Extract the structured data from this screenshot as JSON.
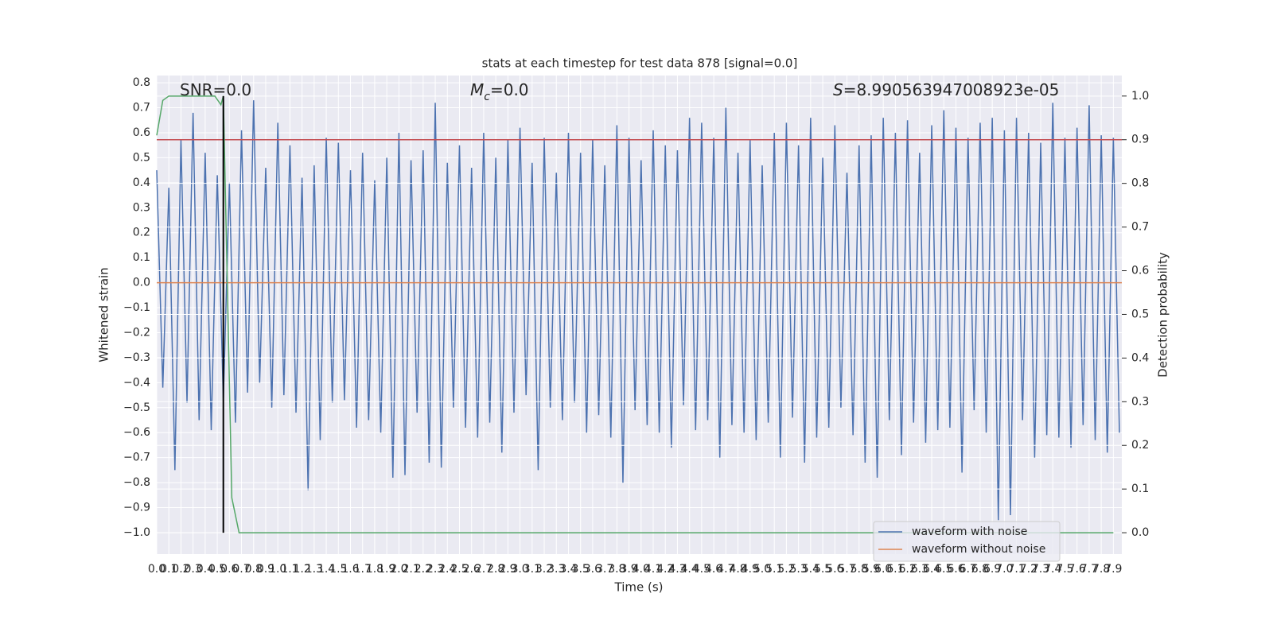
{
  "chart_data": {
    "type": "line",
    "title": "stats at each timestep for test data 878 [signal=0.0]",
    "x_label": "Time (s)",
    "y_label": "Whitened strain",
    "y2_label": "Detection probability",
    "grid": true,
    "legend": "lower right",
    "background": "#eaeaf2",
    "xlim": [
      0,
      7.97
    ],
    "ylim": [
      -1.086,
      0.829
    ],
    "y2lim": [
      -0.049,
      1.047
    ],
    "xticks": [
      {
        "value": 0,
        "label": "0.0"
      },
      0.1,
      0.2,
      0.3,
      0.4,
      0.5,
      0.6,
      0.7,
      0.8,
      0.9,
      {
        "value": 1,
        "label": "1.0"
      },
      1.1,
      1.2,
      1.3,
      1.4,
      1.5,
      1.6,
      1.7,
      1.8,
      1.9,
      {
        "value": 2,
        "label": "2.0"
      },
      2.1,
      2.2,
      2.3,
      2.4,
      2.5,
      2.6,
      2.7,
      2.8,
      2.9,
      {
        "value": 3,
        "label": "3.0"
      },
      3.1,
      3.2,
      3.3,
      3.4,
      3.5,
      3.6,
      3.7,
      3.8,
      3.9,
      {
        "value": 4,
        "label": "4.0"
      },
      4.1,
      4.2,
      4.3,
      4.4,
      4.5,
      4.6,
      4.7,
      4.8,
      4.9,
      {
        "value": 5,
        "label": "5.0"
      },
      5.1,
      5.2,
      5.3,
      5.4,
      5.5,
      5.6,
      5.7,
      5.8,
      5.9,
      {
        "value": 6,
        "label": "6.0"
      },
      6.1,
      6.2,
      6.3,
      6.4,
      6.5,
      6.6,
      6.7,
      6.8,
      6.9,
      {
        "value": 7,
        "label": "7.0"
      },
      7.1,
      7.2,
      7.3,
      7.4,
      7.5,
      7.6,
      7.7,
      7.8,
      7.9
    ],
    "yticks": [
      0.8,
      0.7,
      0.6,
      0.5,
      0.4,
      0.3,
      0.2,
      0.1,
      {
        "value": 0,
        "label": "0.0"
      },
      {
        "value": -0.1,
        "label": "−0.1"
      },
      {
        "value": -0.2,
        "label": "−0.2"
      },
      {
        "value": -0.3,
        "label": "−0.3"
      },
      {
        "value": -0.4,
        "label": "−0.4"
      },
      {
        "value": -0.5,
        "label": "−0.5"
      },
      {
        "value": -0.6,
        "label": "−0.6"
      },
      {
        "value": -0.7,
        "label": "−0.7"
      },
      {
        "value": -0.8,
        "label": "−0.8"
      },
      {
        "value": -0.9,
        "label": "−0.9"
      },
      {
        "value": -1,
        "label": "−1.0"
      }
    ],
    "y2ticks": [
      {
        "value": 1,
        "label": "1.0"
      },
      0.9,
      0.8,
      0.7,
      0.6,
      0.5,
      0.4,
      0.3,
      0.2,
      0.1,
      {
        "value": 0,
        "label": "0.0"
      }
    ],
    "series": [
      {
        "name": "waveform with noise",
        "color": "#4c72b0",
        "x": [
          0,
          0.05,
          0.1,
          0.15,
          0.2,
          0.25,
          0.3,
          0.35,
          0.4,
          0.45,
          0.5,
          0.55,
          0.6,
          0.65,
          0.7,
          0.75,
          0.8,
          0.85,
          0.9,
          0.95,
          1,
          1.05,
          1.1,
          1.15,
          1.2,
          1.25,
          1.3,
          1.35,
          1.4,
          1.45,
          1.5,
          1.55,
          1.6,
          1.65,
          1.7,
          1.75,
          1.8,
          1.85,
          1.9,
          1.95,
          2,
          2.05,
          2.1,
          2.15,
          2.2,
          2.25,
          2.3,
          2.35,
          2.4,
          2.45,
          2.5,
          2.55,
          2.6,
          2.65,
          2.7,
          2.75,
          2.8,
          2.85,
          2.9,
          2.95,
          3,
          3.05,
          3.1,
          3.15,
          3.2,
          3.25,
          3.3,
          3.35,
          3.4,
          3.45,
          3.5,
          3.55,
          3.6,
          3.65,
          3.7,
          3.75,
          3.8,
          3.85,
          3.9,
          3.95,
          4,
          4.05,
          4.1,
          4.15,
          4.2,
          4.25,
          4.3,
          4.35,
          4.4,
          4.45,
          4.5,
          4.55,
          4.6,
          4.65,
          4.7,
          4.75,
          4.8,
          4.85,
          4.9,
          4.95,
          5,
          5.05,
          5.1,
          5.15,
          5.2,
          5.25,
          5.3,
          5.35,
          5.4,
          5.45,
          5.5,
          5.55,
          5.6,
          5.65,
          5.7,
          5.75,
          5.8,
          5.85,
          5.9,
          5.95,
          6,
          6.05,
          6.1,
          6.15,
          6.2,
          6.25,
          6.3,
          6.35,
          6.4,
          6.45,
          6.5,
          6.55,
          6.6,
          6.65,
          6.7,
          6.75,
          6.8,
          6.85,
          6.9,
          6.95,
          7,
          7.05,
          7.1,
          7.15,
          7.2,
          7.25,
          7.3,
          7.35,
          7.4,
          7.45,
          7.5,
          7.55,
          7.6,
          7.65,
          7.7,
          7.75,
          7.8,
          7.85,
          7.9,
          7.95
        ],
        "values": [
          0.45,
          -0.42,
          0.38,
          -0.75,
          0.57,
          -0.48,
          0.68,
          -0.55,
          0.52,
          -0.59,
          0.43,
          -0.47,
          0.4,
          -0.56,
          0.61,
          -0.44,
          0.73,
          -0.4,
          0.46,
          -0.5,
          0.64,
          -0.45,
          0.55,
          -0.52,
          0.42,
          -0.83,
          0.47,
          -0.63,
          0.58,
          -0.48,
          0.56,
          -0.47,
          0.45,
          -0.58,
          0.52,
          -0.55,
          0.41,
          -0.6,
          0.5,
          -0.78,
          0.6,
          -0.77,
          0.49,
          -0.52,
          0.53,
          -0.72,
          0.72,
          -0.74,
          0.48,
          -0.5,
          0.55,
          -0.58,
          0.46,
          -0.62,
          0.6,
          -0.56,
          0.5,
          -0.68,
          0.57,
          -0.52,
          0.62,
          -0.45,
          0.48,
          -0.75,
          0.58,
          -0.5,
          0.44,
          -0.55,
          0.6,
          -0.48,
          0.52,
          -0.6,
          0.57,
          -0.53,
          0.47,
          -0.62,
          0.63,
          -0.8,
          0.58,
          -0.51,
          0.49,
          -0.57,
          0.61,
          -0.6,
          0.55,
          -0.66,
          0.53,
          -0.49,
          0.66,
          -0.59,
          0.64,
          -0.55,
          0.58,
          -0.7,
          0.7,
          -0.57,
          0.52,
          -0.6,
          0.57,
          -0.63,
          0.47,
          -0.56,
          0.6,
          -0.7,
          0.64,
          -0.54,
          0.55,
          -0.72,
          0.66,
          -0.62,
          0.5,
          -0.58,
          0.63,
          -0.5,
          0.44,
          -0.61,
          0.55,
          -0.72,
          0.59,
          -0.78,
          0.66,
          -0.55,
          0.6,
          -0.69,
          0.65,
          -0.56,
          0.52,
          -0.64,
          0.63,
          -0.59,
          0.69,
          -0.58,
          0.62,
          -0.76,
          0.58,
          -0.51,
          0.64,
          -0.6,
          0.66,
          -0.95,
          0.61,
          -0.93,
          0.66,
          -0.55,
          0.6,
          -0.7,
          0.56,
          -0.61,
          0.72,
          -0.62,
          0.58,
          -0.66,
          0.62,
          -0.57,
          0.71,
          -0.63,
          0.59,
          -0.68,
          0.58,
          -0.6
        ]
      },
      {
        "name": "waveform without noise",
        "color": "#dd8452",
        "x": [
          0,
          7.97
        ],
        "values": [
          0,
          0
        ]
      },
      {
        "color": "#c44e52",
        "axis": "y2",
        "x": [
          0,
          7.97
        ],
        "values": [
          0.9,
          0.9
        ]
      },
      {
        "color": "#55a868",
        "axis": "y2",
        "x": [
          0,
          0.05,
          0.1,
          0.48,
          0.53,
          0.55,
          0.62,
          0.68,
          7.9
        ],
        "values": [
          0.91,
          0.99,
          1.0,
          1.0,
          0.98,
          1.0,
          0.08,
          0,
          0
        ]
      }
    ],
    "vlines": [
      {
        "x": 0.55,
        "axis": "y2",
        "color": "#000000",
        "values": [
          0,
          1.0
        ]
      }
    ],
    "annotations": [
      {
        "parts": [
          "SNR=0.0"
        ]
      },
      {
        "parts": [
          "M",
          "c",
          "=0.0"
        ]
      },
      {
        "parts": [
          "S",
          "=8.990563947008923e-05"
        ]
      }
    ]
  }
}
